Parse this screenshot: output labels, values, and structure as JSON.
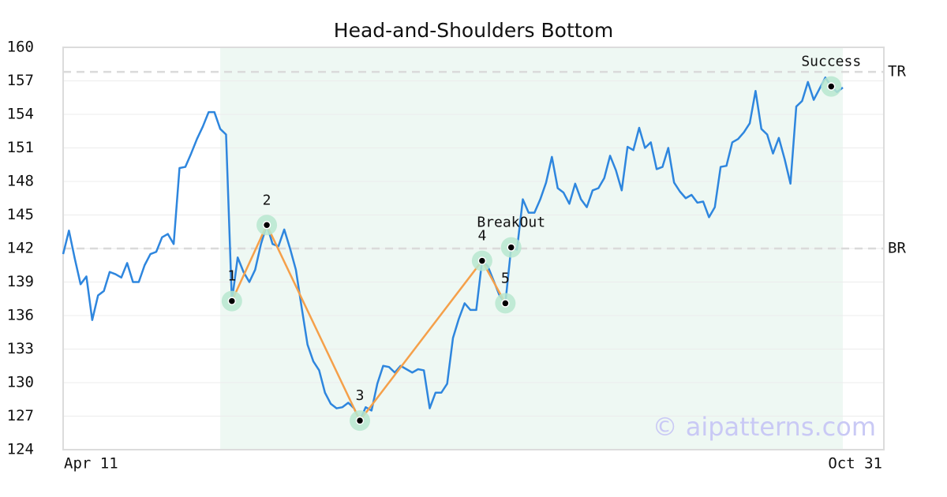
{
  "chart_data": {
    "type": "line",
    "title": "Head-and-Shoulders Bottom",
    "watermark": "© aipatterns.com",
    "categories": [
      "Apr 11",
      null,
      null,
      null,
      null,
      null,
      null,
      null,
      null,
      null,
      null,
      null,
      null,
      null,
      null,
      null,
      null,
      null,
      null,
      null,
      null,
      null,
      null,
      null,
      null,
      null,
      null,
      null,
      null,
      null,
      null,
      null,
      null,
      null,
      null,
      null,
      null,
      null,
      null,
      null,
      null,
      null,
      null,
      null,
      null,
      null,
      null,
      null,
      null,
      null,
      null,
      null,
      null,
      null,
      null,
      null,
      null,
      null,
      null,
      null,
      null,
      null,
      null,
      null,
      null,
      null,
      null,
      null,
      null,
      null,
      null,
      null,
      null,
      null,
      null,
      null,
      null,
      null,
      null,
      null,
      null,
      null,
      null,
      null,
      null,
      null,
      null,
      null,
      null,
      null,
      null,
      null,
      null,
      null,
      null,
      null,
      null,
      null,
      null,
      null,
      null,
      null,
      null,
      null,
      null,
      null,
      null,
      null,
      null,
      null,
      null,
      null,
      null,
      null,
      null,
      null,
      null,
      null,
      null,
      null,
      null,
      null,
      null,
      null,
      null,
      null,
      null,
      null,
      null,
      null,
      null,
      null,
      null,
      null,
      "Oct 31"
    ],
    "series": [
      {
        "color": "#2e86de",
        "values": [
          141.5,
          143.6,
          141.1,
          138.8,
          139.5,
          135.6,
          137.8,
          138.2,
          139.9,
          139.7,
          139.4,
          140.7,
          139.0,
          139.0,
          140.5,
          141.5,
          141.7,
          143.0,
          143.3,
          142.4,
          149.2,
          149.3,
          150.5,
          151.8,
          152.9,
          154.2,
          154.2,
          152.7,
          152.2,
          137.3,
          141.2,
          139.9,
          139.0,
          140.1,
          142.4,
          144.1,
          142.4,
          142.2,
          143.7,
          142.0,
          140.1,
          136.7,
          133.4,
          131.9,
          131.1,
          129.1,
          128.1,
          127.7,
          127.8,
          128.2,
          127.7,
          126.6,
          127.8,
          127.5,
          129.9,
          131.5,
          131.4,
          130.9,
          131.5,
          131.2,
          130.9,
          131.2,
          131.1,
          127.7,
          129.1,
          129.1,
          129.9,
          134.0,
          135.7,
          137.1,
          136.5,
          136.5,
          140.9,
          140.4,
          139.1,
          137.8,
          137.1,
          142.1,
          141.9,
          146.4,
          145.2,
          145.2,
          146.4,
          147.9,
          150.2,
          147.4,
          147.0,
          146.0,
          147.8,
          146.4,
          145.7,
          147.2,
          147.4,
          148.3,
          150.3,
          149.0,
          147.2,
          151.1,
          150.8,
          152.8,
          151.0,
          151.5,
          149.1,
          149.3,
          151.0,
          147.9,
          147.1,
          146.5,
          146.8,
          146.1,
          146.2,
          144.8,
          145.7,
          149.3,
          149.4,
          151.5,
          151.8,
          152.4,
          153.2,
          156.1,
          152.7,
          152.2,
          150.5,
          151.9,
          150.0,
          147.8,
          154.7,
          155.2,
          156.9,
          155.3,
          156.3,
          157.3,
          156.5,
          156.0,
          156.4
        ]
      }
    ],
    "pattern_color": "#f5a04a",
    "highlight_range": [
      27,
      134
    ],
    "points": [
      {
        "label": "1",
        "index": 29,
        "value": 137.3,
        "pattern": true
      },
      {
        "label": "2",
        "index": 35,
        "value": 144.1,
        "pattern": true
      },
      {
        "label": "3",
        "index": 51,
        "value": 126.6,
        "pattern": true
      },
      {
        "label": "4",
        "index": 72,
        "value": 140.9,
        "pattern": true
      },
      {
        "label": "5",
        "index": 76,
        "value": 137.1,
        "pattern": true
      },
      {
        "label": "BreakOut",
        "index": 77,
        "value": 142.1,
        "pattern": false
      },
      {
        "label": "Success",
        "index": 132,
        "value": 156.5,
        "pattern": false
      }
    ],
    "reference_lines": [
      {
        "label": "TR",
        "value": 157.8
      },
      {
        "label": "BR",
        "value": 142.0
      }
    ],
    "ylim": [
      124,
      160
    ],
    "yticks": [
      124,
      127,
      130,
      133,
      136,
      139,
      142,
      145,
      148,
      151,
      154,
      157,
      160
    ],
    "grid": true
  }
}
